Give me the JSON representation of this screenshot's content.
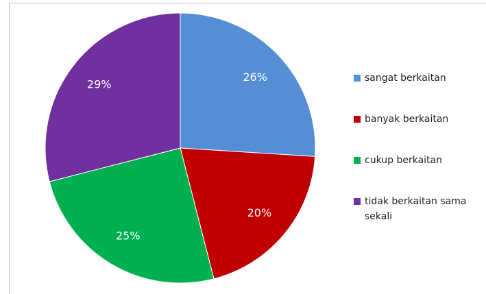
{
  "chart_data": {
    "type": "pie",
    "categories": [
      "sangat berkaitan",
      "banyak berkaitan",
      "cukup berkaitan",
      "tidak berkaitan sama sekali"
    ],
    "values": [
      26,
      20,
      25,
      29
    ],
    "value_labels": [
      "26%",
      "20%",
      "25%",
      "29%"
    ],
    "colors": [
      "#558ed5",
      "#c00000",
      "#00b050",
      "#7030a0"
    ],
    "legend": "right"
  }
}
